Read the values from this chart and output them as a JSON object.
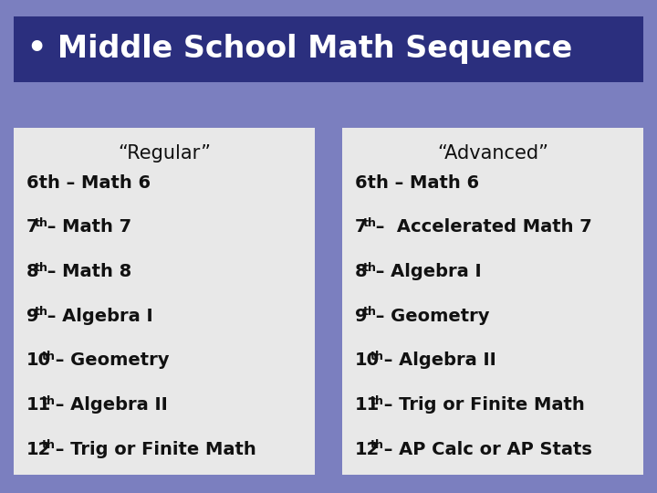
{
  "bg_color": "#7B7FBF",
  "title_bg_color": "#2B2F7E",
  "title_text_color": "#FFFFFF",
  "title_text": "• Middle School Math Sequence",
  "box_bg_color": "#E8E8E8",
  "box_text_color": "#111111",
  "header_regular": "“Regular”",
  "header_advanced": "“Advanced”",
  "grade_nums_r": [
    "6",
    "7",
    "8",
    "9",
    "10",
    "11",
    "12"
  ],
  "grade_sups_r": [
    "th",
    "th",
    "th",
    "th",
    "th",
    "th",
    "th"
  ],
  "suffixes_r": [
    "th – Math 6",
    "– Math 7",
    "– Math 8",
    "– Algebra I",
    "– Geometry",
    "– Algebra II",
    "– Trig or Finite Math"
  ],
  "grade_nums_a": [
    "6",
    "7",
    "8",
    "9",
    "10",
    "11",
    "12"
  ],
  "grade_sups_a": [
    "th",
    "th",
    "th",
    "th",
    "th",
    "th",
    "th"
  ],
  "suffixes_a": [
    "th – Math 6",
    "–  Accelerated Math 7",
    "– Algebra I",
    "– Geometry",
    "– Algebra II",
    "– Trig or Finite Math",
    "– AP Calc or AP Stats"
  ],
  "row_texts_r": [
    "6th – Math 6",
    "7$^{th}$ – Math 7",
    "8$^{th}$ – Math 8",
    "9$^{th}$ – Algebra I",
    "10$^{th}$ – Geometry",
    "11$^{th}$ – Algebra II",
    "12$^{th}$ – Trig or Finite Math"
  ],
  "row_texts_a": [
    "6th – Math 6",
    "7$^{th}$ –  Accelerated Math 7",
    "8$^{th}$ – Algebra I",
    "9$^{th}$ – Geometry",
    "10$^{th}$ – Algebra II",
    "11$^{th}$ – Trig or Finite Math",
    "12$^{th}$ – AP Calc or AP Stats"
  ]
}
